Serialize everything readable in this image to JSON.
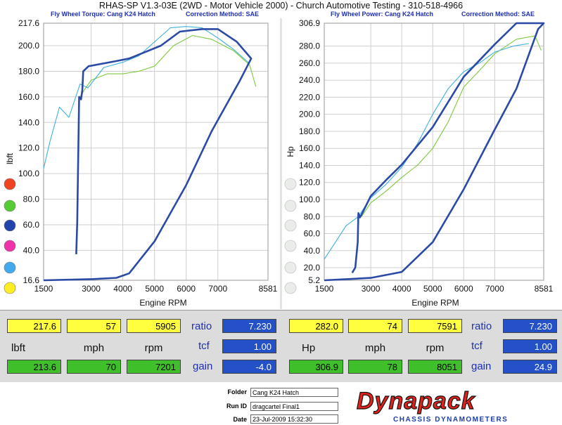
{
  "header": {
    "title": "RHAS-SP V1.3-03E  (2WD - Motor Vehicle 2000) - Church Automotive Testing - 310-518-4966",
    "left_subtitle": "Fly Wheel Torque: Cang K24 Hatch",
    "left_correction": "Correction Method: SAE",
    "right_subtitle": "Fly Wheel Power: Cang K24 Hatch",
    "right_correction": "Correction Method: SAE"
  },
  "legend_dots": {
    "colors": [
      "#ee4422",
      "#55cc33",
      "#2244aa",
      "#ee33aa",
      "#44aaee",
      "#ffee22"
    ]
  },
  "chart_data": [
    {
      "type": "line",
      "ylabel": "lbft",
      "xlabel": "Engine RPM",
      "xlim": [
        1500,
        8581
      ],
      "ylim": [
        16.6,
        217.6
      ],
      "xticks": [
        "1500",
        "3000",
        "4000",
        "5000",
        "6000",
        "7000",
        "8581"
      ],
      "yticks": [
        "16.6",
        "40.0",
        "60.0",
        "80.0",
        "100.0",
        "120.0",
        "140.0",
        "160.0",
        "180.0",
        "200.0",
        "217.6"
      ],
      "grid": true,
      "series": [
        {
          "color": "#2b4aa6",
          "x": [
            1500,
            3000,
            3800,
            4200,
            5000,
            6000,
            6800,
            7700,
            8050,
            7600,
            7000,
            6500,
            5800,
            5200,
            4800,
            4200,
            3800,
            2920,
            2750,
            2720,
            2680,
            2620,
            2560,
            2530
          ],
          "y": [
            16.6,
            17.5,
            18.5,
            22,
            47,
            91,
            133,
            173,
            190,
            203,
            213,
            213,
            211,
            200,
            196,
            190,
            188,
            184,
            180,
            165,
            158,
            160,
            62,
            37
          ]
        },
        {
          "color": "#7ec93c",
          "x": [
            2600,
            2800,
            3000,
            3500,
            4000,
            4500,
            5000,
            5600,
            6200,
            6800,
            7500,
            8000,
            8200
          ],
          "y": [
            158,
            166,
            173,
            178,
            178,
            180,
            184,
            200,
            208,
            205,
            196,
            185,
            168
          ]
        },
        {
          "color": "#3fb0de",
          "x": [
            1500,
            1700,
            2000,
            2300,
            2650,
            2900,
            3400,
            4000,
            4500,
            5000,
            5500,
            6000,
            6500,
            7000,
            7500,
            8000
          ],
          "y": [
            104,
            125,
            152,
            144,
            170,
            167,
            183,
            187,
            192,
            203,
            214,
            215,
            214,
            206,
            197,
            186
          ]
        }
      ]
    },
    {
      "type": "line",
      "ylabel": "Hp",
      "xlabel": "Engine RPM",
      "xlim": [
        1500,
        8581
      ],
      "ylim": [
        5.2,
        306.9
      ],
      "xticks": [
        "1500",
        "3000",
        "4000",
        "5000",
        "6000",
        "7000",
        "8581"
      ],
      "yticks": [
        "5.2",
        "20.0",
        "40.0",
        "60.0",
        "80.0",
        "100.0",
        "120.0",
        "140.0",
        "160.0",
        "180.0",
        "200.0",
        "220.0",
        "240.0",
        "260.0",
        "280.0",
        "306.9"
      ],
      "grid": true,
      "series": [
        {
          "color": "#2b4aa6",
          "x": [
            1500,
            3000,
            4000,
            5000,
            6000,
            7000,
            7700,
            8400,
            8581,
            7700,
            7000,
            6000,
            5000,
            4000,
            3500,
            3000,
            2700,
            2650,
            2600,
            2580,
            2500,
            2400
          ],
          "y": [
            5.2,
            8,
            15,
            50,
            112,
            182,
            230,
            300,
            306.9,
            306.9,
            282,
            244,
            185,
            141,
            123,
            104,
            82,
            79,
            84,
            50,
            20,
            14
          ]
        },
        {
          "color": "#7ec93c",
          "x": [
            2700,
            3000,
            3500,
            4000,
            4500,
            5000,
            5500,
            6000,
            6500,
            7000,
            7700,
            8300,
            8500
          ],
          "y": [
            80,
            96,
            110,
            126,
            140,
            160,
            191,
            232,
            251,
            271,
            288,
            292,
            275
          ]
        },
        {
          "color": "#3fb0de",
          "x": [
            1500,
            1900,
            2200,
            2600,
            3000,
            3500,
            4000,
            4500,
            5000,
            5500,
            6000,
            6500,
            7000,
            7600,
            8100
          ],
          "y": [
            30,
            52,
            69,
            80,
            102,
            118,
            138,
            165,
            200,
            230,
            250,
            260,
            273,
            280,
            283
          ]
        }
      ]
    }
  ],
  "readout_left": {
    "top": [
      "217.6",
      "57",
      "5905"
    ],
    "units": [
      "lbft",
      "mph",
      "rpm"
    ],
    "bottom": [
      "213.6",
      "70",
      "7201"
    ],
    "params": [
      "ratio",
      "tcf",
      "gain"
    ],
    "param_values": [
      "7.230",
      "1.00",
      "-4.0"
    ]
  },
  "readout_right": {
    "top": [
      "282.0",
      "74",
      "7591"
    ],
    "units": [
      "Hp",
      "mph",
      "rpm"
    ],
    "bottom": [
      "306.9",
      "78",
      "8051"
    ],
    "params": [
      "ratio",
      "tcf",
      "gain"
    ],
    "param_values": [
      "7.230",
      "1.00",
      "24.9"
    ]
  },
  "footer": {
    "folder_label": "Folder",
    "folder_value": "Cang K24 Hatch",
    "runid_label": "Run ID",
    "runid_value": "dragcartel Final1",
    "date_label": "Date",
    "date_value": "23-Jul-2009  15:32:30",
    "brand": "Dynapack",
    "brand_sub": "CHASSIS DYNAMOMETERS"
  }
}
